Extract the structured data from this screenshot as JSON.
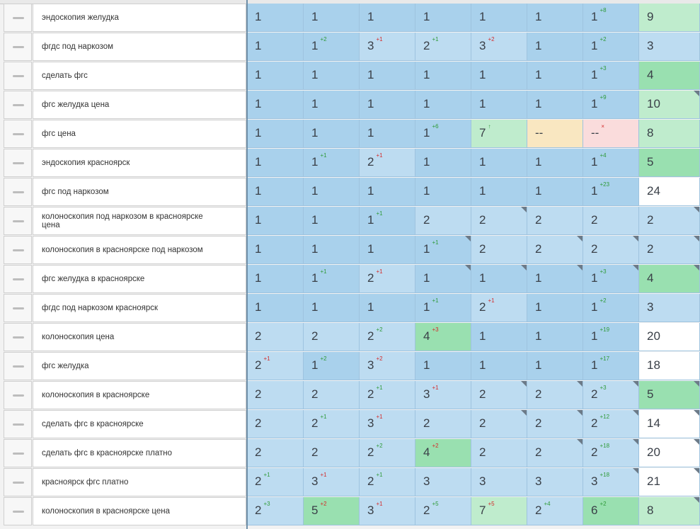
{
  "colors": {
    "blue": "#a9d1ec",
    "lightblue": "#bddcf1",
    "green": "#99e0b0",
    "lightgreen": "#bfeccd",
    "white": "#ffffff",
    "yellow": "#f9e7c1",
    "pink": "#fadcdc"
  },
  "rows": [
    {
      "phrase": "эндоскопия желудка",
      "cells": [
        {
          "v": "1",
          "t": "blue"
        },
        {
          "v": "1",
          "t": "blue"
        },
        {
          "v": "1",
          "t": "blue"
        },
        {
          "v": "1",
          "t": "blue"
        },
        {
          "v": "1",
          "t": "blue"
        },
        {
          "v": "1",
          "t": "blue"
        },
        {
          "v": "1",
          "t": "blue",
          "d": "+8",
          "dir": "up"
        },
        {
          "v": "9",
          "t": "lightgreen"
        }
      ]
    },
    {
      "phrase": "фгдс под наркозом",
      "cells": [
        {
          "v": "1",
          "t": "blue"
        },
        {
          "v": "1",
          "t": "blue",
          "d": "+2",
          "dir": "up"
        },
        {
          "v": "3",
          "t": "lightblue",
          "d": "+1",
          "dir": "down"
        },
        {
          "v": "2",
          "t": "lightblue",
          "d": "+1",
          "dir": "up"
        },
        {
          "v": "3",
          "t": "lightblue",
          "d": "+2",
          "dir": "down"
        },
        {
          "v": "1",
          "t": "blue"
        },
        {
          "v": "1",
          "t": "blue",
          "d": "+2",
          "dir": "up"
        },
        {
          "v": "3",
          "t": "lightblue"
        }
      ]
    },
    {
      "phrase": "сделать фгс",
      "cells": [
        {
          "v": "1",
          "t": "blue"
        },
        {
          "v": "1",
          "t": "blue"
        },
        {
          "v": "1",
          "t": "blue"
        },
        {
          "v": "1",
          "t": "blue"
        },
        {
          "v": "1",
          "t": "blue"
        },
        {
          "v": "1",
          "t": "blue"
        },
        {
          "v": "1",
          "t": "blue",
          "d": "+3",
          "dir": "up"
        },
        {
          "v": "4",
          "t": "green"
        }
      ]
    },
    {
      "phrase": "фгс желудка цена",
      "cells": [
        {
          "v": "1",
          "t": "blue"
        },
        {
          "v": "1",
          "t": "blue"
        },
        {
          "v": "1",
          "t": "blue"
        },
        {
          "v": "1",
          "t": "blue"
        },
        {
          "v": "1",
          "t": "blue"
        },
        {
          "v": "1",
          "t": "blue"
        },
        {
          "v": "1",
          "t": "blue",
          "d": "+9",
          "dir": "up"
        },
        {
          "v": "10",
          "t": "lightgreen"
        }
      ]
    },
    {
      "phrase": "фгс цена",
      "cells": [
        {
          "v": "1",
          "t": "blue"
        },
        {
          "v": "1",
          "t": "blue"
        },
        {
          "v": "1",
          "t": "blue"
        },
        {
          "v": "1",
          "t": "blue",
          "d": "+6",
          "dir": "up"
        },
        {
          "v": "7",
          "t": "lightgreen",
          "d": "↑",
          "dir": "up"
        },
        {
          "v": "--",
          "t": "yellow"
        },
        {
          "v": "--",
          "t": "pink",
          "d": "×",
          "dir": "down"
        },
        {
          "v": "8",
          "t": "lightgreen"
        }
      ]
    },
    {
      "phrase": "эндоскопия красноярск",
      "cells": [
        {
          "v": "1",
          "t": "blue"
        },
        {
          "v": "1",
          "t": "blue",
          "d": "+1",
          "dir": "up"
        },
        {
          "v": "2",
          "t": "lightblue",
          "d": "+1",
          "dir": "down"
        },
        {
          "v": "1",
          "t": "blue"
        },
        {
          "v": "1",
          "t": "blue"
        },
        {
          "v": "1",
          "t": "blue"
        },
        {
          "v": "1",
          "t": "blue",
          "d": "+4",
          "dir": "up"
        },
        {
          "v": "5",
          "t": "green"
        }
      ]
    },
    {
      "phrase": "фгс под наркозом",
      "cells": [
        {
          "v": "1",
          "t": "blue"
        },
        {
          "v": "1",
          "t": "blue"
        },
        {
          "v": "1",
          "t": "blue"
        },
        {
          "v": "1",
          "t": "blue"
        },
        {
          "v": "1",
          "t": "blue"
        },
        {
          "v": "1",
          "t": "blue"
        },
        {
          "v": "1",
          "t": "blue",
          "d": "+23",
          "dir": "up"
        },
        {
          "v": "24",
          "t": "white"
        }
      ]
    },
    {
      "phrase": "колоноскопия под наркозом в красноярске цена",
      "cells": [
        {
          "v": "1",
          "t": "blue"
        },
        {
          "v": "1",
          "t": "blue"
        },
        {
          "v": "1",
          "t": "blue",
          "d": "+1",
          "dir": "up"
        },
        {
          "v": "2",
          "t": "lightblue"
        },
        {
          "v": "2",
          "t": "lightblue"
        },
        {
          "v": "2",
          "t": "lightblue"
        },
        {
          "v": "2",
          "t": "lightblue"
        },
        {
          "v": "2",
          "t": "lightblue"
        }
      ]
    },
    {
      "phrase": "колоноскопия в красноярске под наркозом",
      "cells": [
        {
          "v": "1",
          "t": "blue"
        },
        {
          "v": "1",
          "t": "blue"
        },
        {
          "v": "1",
          "t": "blue"
        },
        {
          "v": "1",
          "t": "blue",
          "d": "+1",
          "dir": "up"
        },
        {
          "v": "2",
          "t": "lightblue"
        },
        {
          "v": "2",
          "t": "lightblue"
        },
        {
          "v": "2",
          "t": "lightblue"
        },
        {
          "v": "2",
          "t": "lightblue"
        }
      ]
    },
    {
      "phrase": "фгс желудка в красноярске",
      "cells": [
        {
          "v": "1",
          "t": "blue"
        },
        {
          "v": "1",
          "t": "blue",
          "d": "+1",
          "dir": "up"
        },
        {
          "v": "2",
          "t": "lightblue",
          "d": "+1",
          "dir": "down"
        },
        {
          "v": "1",
          "t": "blue"
        },
        {
          "v": "1",
          "t": "blue"
        },
        {
          "v": "1",
          "t": "blue"
        },
        {
          "v": "1",
          "t": "blue",
          "d": "+3",
          "dir": "up"
        },
        {
          "v": "4",
          "t": "green"
        }
      ]
    },
    {
      "phrase": "фгдс под наркозом красноярск",
      "cells": [
        {
          "v": "1",
          "t": "blue"
        },
        {
          "v": "1",
          "t": "blue"
        },
        {
          "v": "1",
          "t": "blue"
        },
        {
          "v": "1",
          "t": "blue",
          "d": "+1",
          "dir": "up"
        },
        {
          "v": "2",
          "t": "lightblue",
          "d": "+1",
          "dir": "down"
        },
        {
          "v": "1",
          "t": "blue"
        },
        {
          "v": "1",
          "t": "blue",
          "d": "+2",
          "dir": "up"
        },
        {
          "v": "3",
          "t": "lightblue"
        }
      ]
    },
    {
      "phrase": "колоноскопия цена",
      "cells": [
        {
          "v": "2",
          "t": "lightblue"
        },
        {
          "v": "2",
          "t": "lightblue"
        },
        {
          "v": "2",
          "t": "lightblue",
          "d": "+2",
          "dir": "up"
        },
        {
          "v": "4",
          "t": "green",
          "d": "+3",
          "dir": "down"
        },
        {
          "v": "1",
          "t": "blue"
        },
        {
          "v": "1",
          "t": "blue"
        },
        {
          "v": "1",
          "t": "blue",
          "d": "+19",
          "dir": "up"
        },
        {
          "v": "20",
          "t": "white"
        }
      ]
    },
    {
      "phrase": "фгс желудка",
      "cells": [
        {
          "v": "2",
          "t": "lightblue",
          "d": "+1",
          "dir": "down"
        },
        {
          "v": "1",
          "t": "blue",
          "d": "+2",
          "dir": "up"
        },
        {
          "v": "3",
          "t": "lightblue",
          "d": "+2",
          "dir": "down"
        },
        {
          "v": "1",
          "t": "blue"
        },
        {
          "v": "1",
          "t": "blue"
        },
        {
          "v": "1",
          "t": "blue"
        },
        {
          "v": "1",
          "t": "blue",
          "d": "+17",
          "dir": "up"
        },
        {
          "v": "18",
          "t": "white"
        }
      ]
    },
    {
      "phrase": "колоноскопия в красноярске",
      "cells": [
        {
          "v": "2",
          "t": "lightblue"
        },
        {
          "v": "2",
          "t": "lightblue"
        },
        {
          "v": "2",
          "t": "lightblue",
          "d": "+1",
          "dir": "up"
        },
        {
          "v": "3",
          "t": "lightblue",
          "d": "+1",
          "dir": "down"
        },
        {
          "v": "2",
          "t": "lightblue"
        },
        {
          "v": "2",
          "t": "lightblue"
        },
        {
          "v": "2",
          "t": "lightblue",
          "d": "+3",
          "dir": "up"
        },
        {
          "v": "5",
          "t": "green"
        }
      ]
    },
    {
      "phrase": "сделать фгс в красноярске",
      "cells": [
        {
          "v": "2",
          "t": "lightblue"
        },
        {
          "v": "2",
          "t": "lightblue",
          "d": "+1",
          "dir": "up"
        },
        {
          "v": "3",
          "t": "lightblue",
          "d": "+1",
          "dir": "down"
        },
        {
          "v": "2",
          "t": "lightblue"
        },
        {
          "v": "2",
          "t": "lightblue"
        },
        {
          "v": "2",
          "t": "lightblue"
        },
        {
          "v": "2",
          "t": "lightblue",
          "d": "+12",
          "dir": "up"
        },
        {
          "v": "14",
          "t": "white"
        }
      ]
    },
    {
      "phrase": "сделать фгс в красноярске платно",
      "cells": [
        {
          "v": "2",
          "t": "lightblue"
        },
        {
          "v": "2",
          "t": "lightblue"
        },
        {
          "v": "2",
          "t": "lightblue",
          "d": "+2",
          "dir": "up"
        },
        {
          "v": "4",
          "t": "green",
          "d": "+2",
          "dir": "down"
        },
        {
          "v": "2",
          "t": "lightblue"
        },
        {
          "v": "2",
          "t": "lightblue"
        },
        {
          "v": "2",
          "t": "lightblue",
          "d": "+18",
          "dir": "up"
        },
        {
          "v": "20",
          "t": "white"
        }
      ]
    },
    {
      "phrase": "красноярск фгс платно",
      "cells": [
        {
          "v": "2",
          "t": "lightblue",
          "d": "+1",
          "dir": "up"
        },
        {
          "v": "3",
          "t": "lightblue",
          "d": "+1",
          "dir": "down"
        },
        {
          "v": "2",
          "t": "lightblue",
          "d": "+1",
          "dir": "up"
        },
        {
          "v": "3",
          "t": "lightblue"
        },
        {
          "v": "3",
          "t": "lightblue"
        },
        {
          "v": "3",
          "t": "lightblue"
        },
        {
          "v": "3",
          "t": "lightblue",
          "d": "+18",
          "dir": "up"
        },
        {
          "v": "21",
          "t": "white"
        }
      ]
    },
    {
      "phrase": "колоноскопия в красноярске цена",
      "cells": [
        {
          "v": "2",
          "t": "lightblue",
          "d": "+3",
          "dir": "up"
        },
        {
          "v": "5",
          "t": "green",
          "d": "+2",
          "dir": "down"
        },
        {
          "v": "3",
          "t": "lightblue",
          "d": "+1",
          "dir": "down"
        },
        {
          "v": "2",
          "t": "lightblue",
          "d": "+5",
          "dir": "up"
        },
        {
          "v": "7",
          "t": "lightgreen",
          "d": "+5",
          "dir": "down"
        },
        {
          "v": "2",
          "t": "lightblue",
          "d": "+4",
          "dir": "up"
        },
        {
          "v": "6",
          "t": "green",
          "d": "+2",
          "dir": "up"
        },
        {
          "v": "8",
          "t": "lightgreen"
        }
      ]
    }
  ]
}
